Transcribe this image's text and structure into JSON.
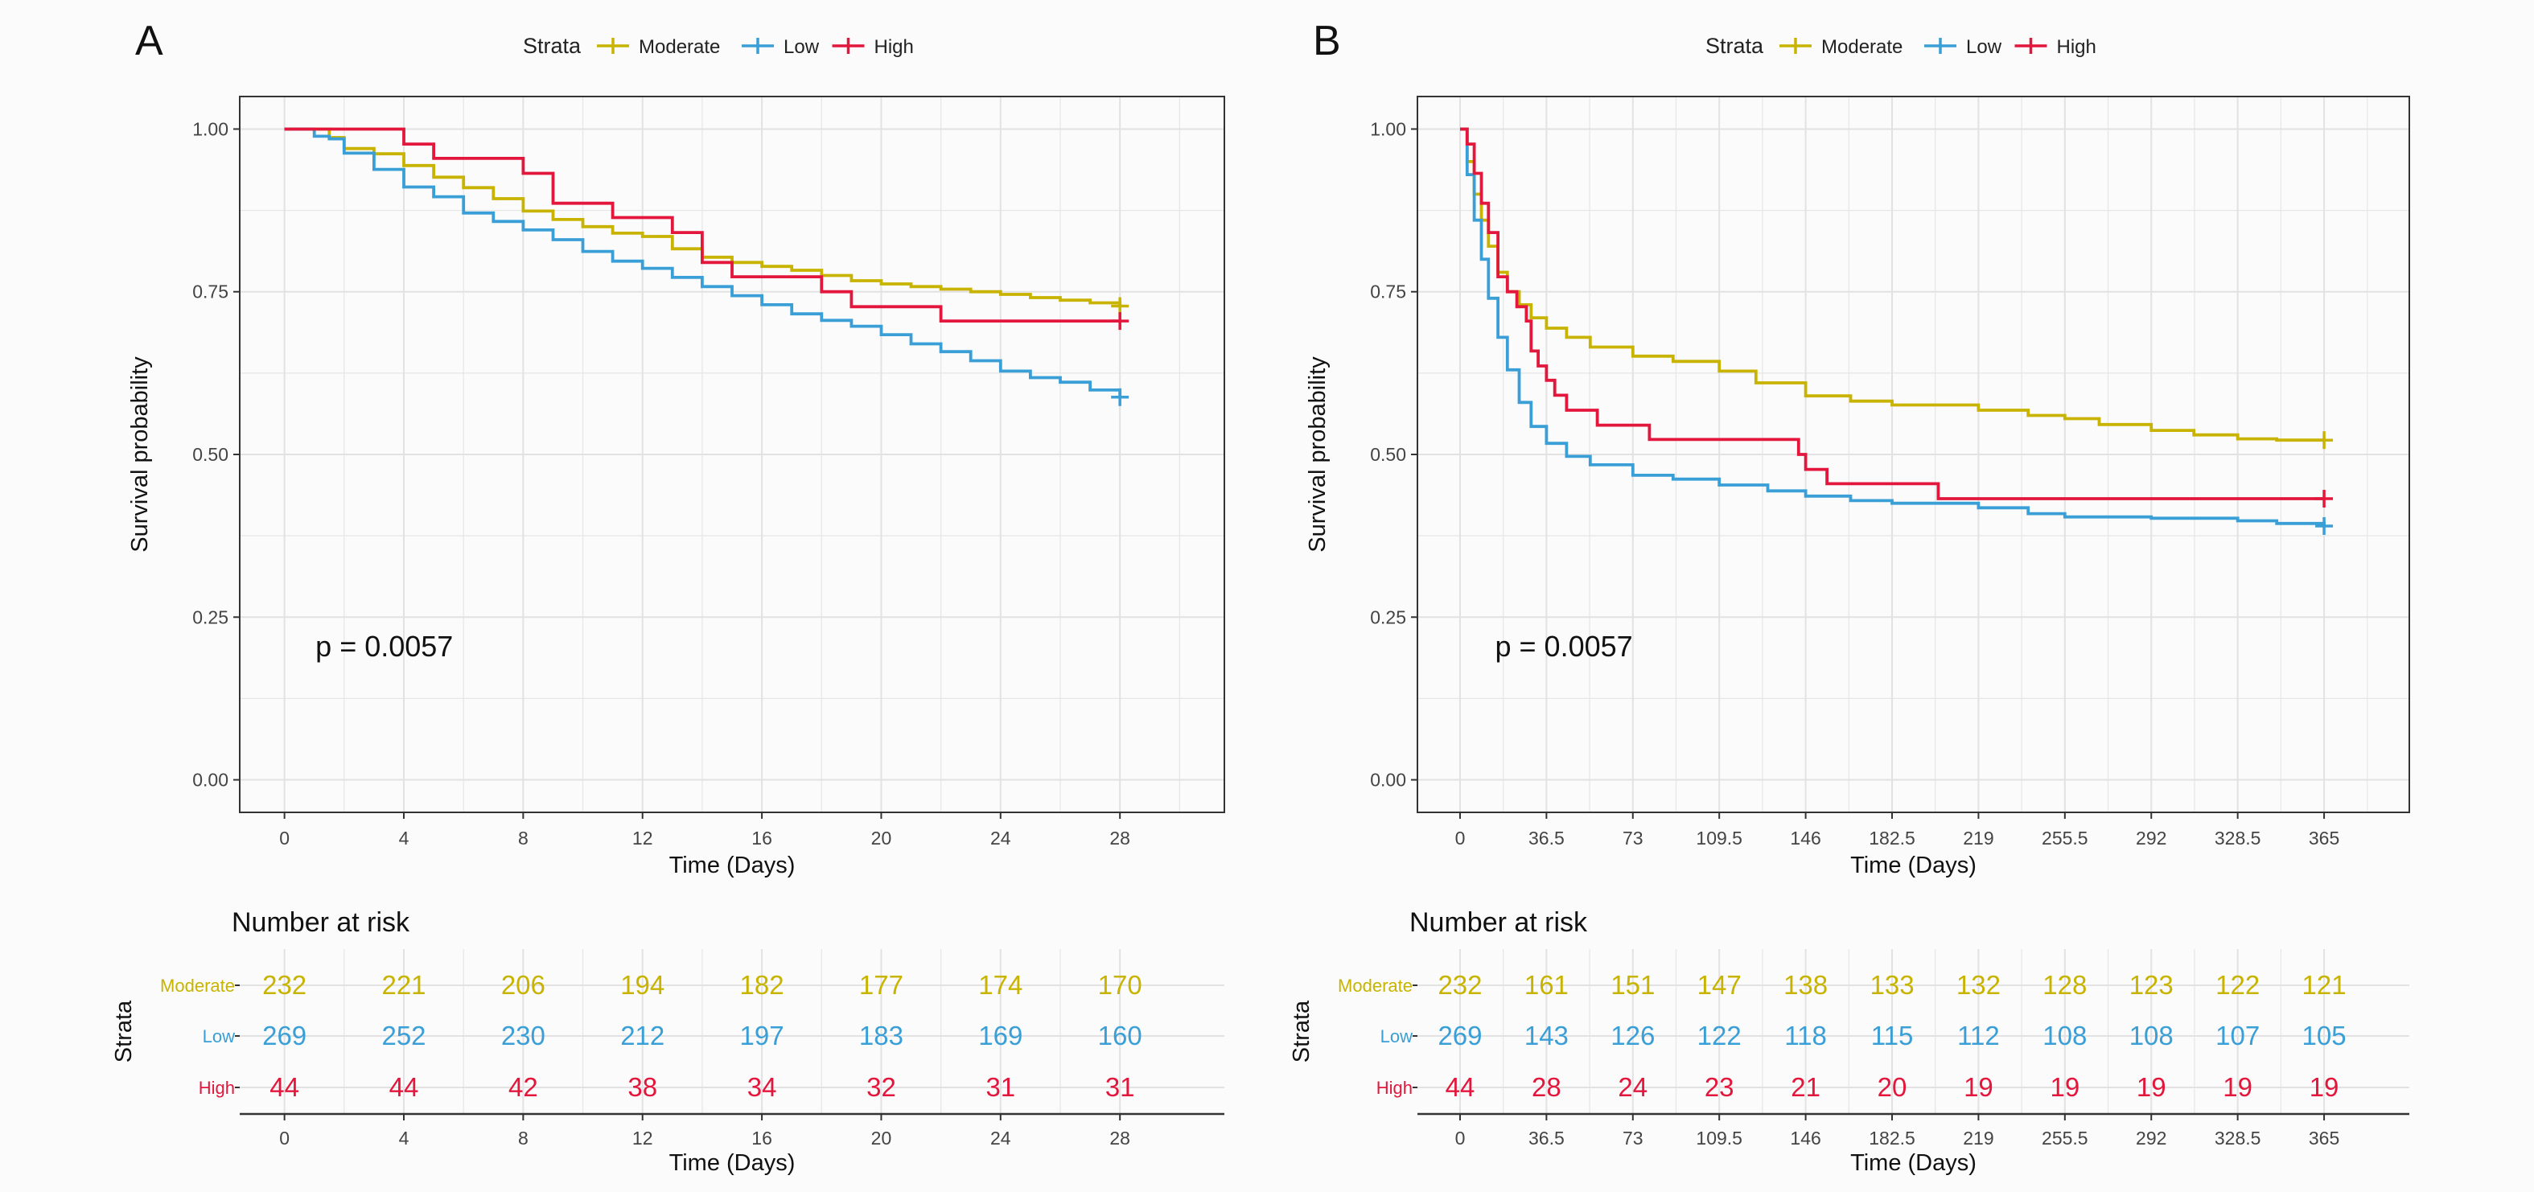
{
  "colors": {
    "Moderate": "#c8b400",
    "Low": "#3a9fd6",
    "High": "#e3163c",
    "background": "#fbfbfb",
    "grid": "#e6e6e6"
  },
  "chart_data": [
    {
      "panel_label": "A",
      "type": "line",
      "legend": {
        "title": "Strata",
        "placement": "top",
        "entries": [
          "Moderate",
          "Low",
          "High"
        ]
      },
      "xlabel": "Time (Days)",
      "ylabel": "Survival probability",
      "xlim": [
        -1.5,
        31.5
      ],
      "ylim": [
        -0.05,
        1.05
      ],
      "x_ticks": [
        0,
        4,
        8,
        12,
        16,
        20,
        24,
        28
      ],
      "x_tick_labels": [
        "0",
        "4",
        "8",
        "12",
        "16",
        "20",
        "24",
        "28"
      ],
      "y_ticks": [
        0,
        0.25,
        0.5,
        0.75,
        1.0
      ],
      "y_tick_labels": [
        "0.00",
        "0.25",
        "0.50",
        "0.75",
        "1.00"
      ],
      "annotation": "p = 0.0057",
      "annotation_at": [
        0.5,
        0.19
      ],
      "grid": true,
      "series": [
        {
          "name": "Moderate",
          "points": [
            [
              0,
              1.0
            ],
            [
              1.5,
              0.987
            ],
            [
              2,
              0.97
            ],
            [
              3,
              0.962
            ],
            [
              4,
              0.944
            ],
            [
              5,
              0.926
            ],
            [
              6,
              0.91
            ],
            [
              7,
              0.893
            ],
            [
              8,
              0.874
            ],
            [
              9,
              0.861
            ],
            [
              10,
              0.85
            ],
            [
              11,
              0.84
            ],
            [
              12,
              0.835
            ],
            [
              13,
              0.816
            ],
            [
              14,
              0.803
            ],
            [
              15,
              0.795
            ],
            [
              16,
              0.789
            ],
            [
              17,
              0.783
            ],
            [
              18,
              0.775
            ],
            [
              19,
              0.767
            ],
            [
              20,
              0.762
            ],
            [
              21,
              0.758
            ],
            [
              22,
              0.754
            ],
            [
              23,
              0.75
            ],
            [
              24,
              0.746
            ],
            [
              25,
              0.741
            ],
            [
              26,
              0.737
            ],
            [
              27,
              0.733
            ],
            [
              28,
              0.728
            ]
          ]
        },
        {
          "name": "Low",
          "points": [
            [
              0,
              1.0
            ],
            [
              1.0,
              0.989
            ],
            [
              1.5,
              0.985
            ],
            [
              2,
              0.963
            ],
            [
              3,
              0.938
            ],
            [
              4,
              0.911
            ],
            [
              5,
              0.896
            ],
            [
              6,
              0.871
            ],
            [
              7,
              0.858
            ],
            [
              8,
              0.845
            ],
            [
              9,
              0.83
            ],
            [
              10,
              0.812
            ],
            [
              11,
              0.797
            ],
            [
              12,
              0.786
            ],
            [
              13,
              0.772
            ],
            [
              14,
              0.758
            ],
            [
              15,
              0.744
            ],
            [
              16,
              0.73
            ],
            [
              17,
              0.716
            ],
            [
              18,
              0.706
            ],
            [
              19,
              0.697
            ],
            [
              20,
              0.684
            ],
            [
              21,
              0.67
            ],
            [
              22,
              0.658
            ],
            [
              23,
              0.644
            ],
            [
              24,
              0.628
            ],
            [
              25,
              0.618
            ],
            [
              26,
              0.611
            ],
            [
              27,
              0.599
            ],
            [
              28,
              0.588
            ]
          ]
        },
        {
          "name": "High",
          "points": [
            [
              0,
              1.0
            ],
            [
              4,
              0.977
            ],
            [
              5,
              0.955
            ],
            [
              8,
              0.932
            ],
            [
              9,
              0.886
            ],
            [
              11,
              0.864
            ],
            [
              13,
              0.841
            ],
            [
              14,
              0.795
            ],
            [
              15,
              0.773
            ],
            [
              18,
              0.75
            ],
            [
              19,
              0.727
            ],
            [
              22,
              0.705
            ],
            [
              28,
              0.705
            ]
          ]
        }
      ],
      "censor_marks": [
        {
          "name": "Moderate",
          "x": 28,
          "y": 0.728
        },
        {
          "name": "Low",
          "x": 28,
          "y": 0.588
        },
        {
          "name": "High",
          "x": 28,
          "y": 0.705
        }
      ],
      "risk_table": {
        "title": "Number at risk",
        "ylabel": "Strata",
        "xlabel": "Time (Days)",
        "rows": [
          {
            "name": "Moderate",
            "values": [
              "232",
              "221",
              "206",
              "194",
              "182",
              "177",
              "174",
              "170"
            ]
          },
          {
            "name": "Low",
            "values": [
              "269",
              "252",
              "230",
              "212",
              "197",
              "183",
              "169",
              "160"
            ]
          },
          {
            "name": "High",
            "values": [
              "44",
              "44",
              "42",
              "38",
              "34",
              "32",
              "31",
              "31"
            ]
          }
        ]
      }
    },
    {
      "panel_label": "B",
      "type": "line",
      "legend": {
        "title": "Strata",
        "placement": "top",
        "entries": [
          "Moderate",
          "Low",
          "High"
        ]
      },
      "xlabel": "Time (Days)",
      "ylabel": "Survival probability",
      "xlim": [
        -18,
        401
      ],
      "ylim": [
        -0.05,
        1.05
      ],
      "x_ticks": [
        0,
        36.5,
        73,
        109.5,
        146,
        182.5,
        219,
        255.5,
        292,
        328.5,
        365
      ],
      "x_tick_labels": [
        "0",
        "36.5",
        "73",
        "109.5",
        "146",
        "182.5",
        "219",
        "255.5",
        "292",
        "328.5",
        "365"
      ],
      "y_ticks": [
        0,
        0.25,
        0.5,
        0.75,
        1.0
      ],
      "y_tick_labels": [
        "0.00",
        "0.25",
        "0.50",
        "0.75",
        "1.00"
      ],
      "annotation": "p = 0.0057",
      "annotation_at": [
        8,
        0.19
      ],
      "grid": true,
      "series": [
        {
          "name": "Moderate",
          "points": [
            [
              0,
              1.0
            ],
            [
              3,
              0.95
            ],
            [
              6,
              0.9
            ],
            [
              9,
              0.86
            ],
            [
              12,
              0.82
            ],
            [
              16,
              0.78
            ],
            [
              20,
              0.75
            ],
            [
              25,
              0.73
            ],
            [
              30,
              0.71
            ],
            [
              36.5,
              0.694
            ],
            [
              45,
              0.68
            ],
            [
              55,
              0.665
            ],
            [
              73,
              0.651
            ],
            [
              90,
              0.643
            ],
            [
              109.5,
              0.628
            ],
            [
              125,
              0.61
            ],
            [
              146,
              0.59
            ],
            [
              165,
              0.582
            ],
            [
              182.5,
              0.576
            ],
            [
              219,
              0.568
            ],
            [
              240,
              0.56
            ],
            [
              255.5,
              0.555
            ],
            [
              270,
              0.546
            ],
            [
              292,
              0.537
            ],
            [
              310,
              0.53
            ],
            [
              328.5,
              0.524
            ],
            [
              345,
              0.522
            ],
            [
              365,
              0.522
            ]
          ]
        },
        {
          "name": "Low",
          "points": [
            [
              0,
              1.0
            ],
            [
              3,
              0.93
            ],
            [
              6,
              0.86
            ],
            [
              9,
              0.8
            ],
            [
              12,
              0.74
            ],
            [
              16,
              0.68
            ],
            [
              20,
              0.63
            ],
            [
              25,
              0.58
            ],
            [
              30,
              0.543
            ],
            [
              36.5,
              0.517
            ],
            [
              45,
              0.497
            ],
            [
              55,
              0.484
            ],
            [
              73,
              0.468
            ],
            [
              90,
              0.462
            ],
            [
              109.5,
              0.453
            ],
            [
              130,
              0.444
            ],
            [
              146,
              0.436
            ],
            [
              165,
              0.429
            ],
            [
              182.5,
              0.425
            ],
            [
              219,
              0.418
            ],
            [
              240,
              0.409
            ],
            [
              255.5,
              0.404
            ],
            [
              292,
              0.402
            ],
            [
              328.5,
              0.398
            ],
            [
              345,
              0.394
            ],
            [
              365,
              0.39
            ]
          ]
        },
        {
          "name": "High",
          "points": [
            [
              0,
              1.0
            ],
            [
              3,
              0.977
            ],
            [
              6,
              0.932
            ],
            [
              9,
              0.886
            ],
            [
              12,
              0.841
            ],
            [
              16,
              0.773
            ],
            [
              20,
              0.75
            ],
            [
              24,
              0.727
            ],
            [
              28,
              0.705
            ],
            [
              30,
              0.659
            ],
            [
              33,
              0.636
            ],
            [
              36.5,
              0.614
            ],
            [
              40,
              0.591
            ],
            [
              45,
              0.568
            ],
            [
              58,
              0.545
            ],
            [
              73,
              0.545
            ],
            [
              80,
              0.523
            ],
            [
              143,
              0.5
            ],
            [
              146,
              0.477
            ],
            [
              155,
              0.455
            ],
            [
              202,
              0.432
            ],
            [
              365,
              0.432
            ]
          ]
        }
      ],
      "censor_marks": [
        {
          "name": "Moderate",
          "x": 365,
          "y": 0.522
        },
        {
          "name": "Low",
          "x": 365,
          "y": 0.39
        },
        {
          "name": "High",
          "x": 365,
          "y": 0.432
        }
      ],
      "risk_table": {
        "title": "Number at risk",
        "ylabel": "Strata",
        "xlabel": "Time (Days)",
        "rows": [
          {
            "name": "Moderate",
            "values": [
              "232",
              "161",
              "151",
              "147",
              "138",
              "133",
              "132",
              "128",
              "123",
              "122",
              "121"
            ]
          },
          {
            "name": "Low",
            "values": [
              "269",
              "143",
              "126",
              "122",
              "118",
              "115",
              "112",
              "108",
              "108",
              "107",
              "105"
            ]
          },
          {
            "name": "High",
            "values": [
              "44",
              "28",
              "24",
              "23",
              "21",
              "20",
              "19",
              "19",
              "19",
              "19",
              "19"
            ]
          }
        ]
      }
    }
  ]
}
